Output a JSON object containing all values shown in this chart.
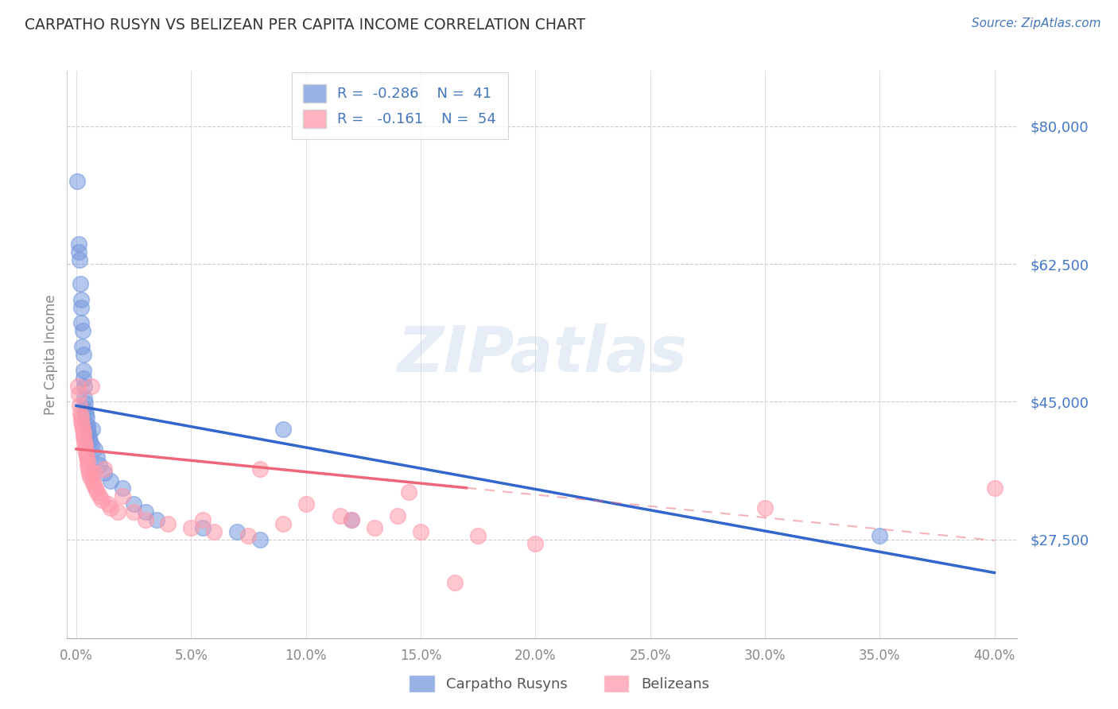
{
  "title": "CARPATHO RUSYN VS BELIZEAN PER CAPITA INCOME CORRELATION CHART",
  "source": "Source: ZipAtlas.com",
  "ylabel": "Per Capita Income",
  "xlabel_ticks": [
    "0.0%",
    "5.0%",
    "10.0%",
    "15.0%",
    "20.0%",
    "25.0%",
    "30.0%",
    "35.0%",
    "40.0%"
  ],
  "xlabel_vals": [
    0.0,
    5.0,
    10.0,
    15.0,
    20.0,
    25.0,
    30.0,
    35.0,
    40.0
  ],
  "ytick_labels": [
    "$27,500",
    "$45,000",
    "$62,500",
    "$80,000"
  ],
  "ytick_vals": [
    27500,
    45000,
    62500,
    80000
  ],
  "ylim": [
    15000,
    87000
  ],
  "xlim": [
    -0.4,
    41.0
  ],
  "watermark": "ZIPatlas",
  "title_color": "#333333",
  "source_color": "#4477bb",
  "axis_label_color": "#888888",
  "ytick_color": "#4477cc",
  "background_color": "#ffffff",
  "grid_color": "#cccccc",
  "blue_color": "#7799dd",
  "pink_color": "#ff99aa",
  "blue_line_color": "#3366cc",
  "pink_line_color": "#ee6677",
  "blue_intercept": 44500,
  "blue_slope": -530,
  "pink_intercept": 39000,
  "pink_slope": -290,
  "pink_solid_end": 17,
  "blue_line_end": 40,
  "pink_line_end": 40,
  "carpatho_rusyn_x": [
    0.05,
    0.1,
    0.12,
    0.15,
    0.18,
    0.2,
    0.22,
    0.22,
    0.25,
    0.28,
    0.3,
    0.3,
    0.32,
    0.35,
    0.35,
    0.38,
    0.4,
    0.42,
    0.45,
    0.48,
    0.5,
    0.52,
    0.55,
    0.6,
    0.65,
    0.7,
    0.8,
    0.9,
    1.0,
    1.2,
    1.5,
    2.0,
    2.5,
    3.0,
    3.5,
    5.5,
    7.0,
    8.0,
    9.0,
    12.0,
    35.0
  ],
  "carpatho_rusyn_y": [
    73000,
    65000,
    64000,
    63000,
    60000,
    58000,
    57000,
    55000,
    52000,
    54000,
    51000,
    49000,
    48000,
    47000,
    45500,
    44800,
    44000,
    43500,
    43000,
    42000,
    41500,
    41000,
    40500,
    40000,
    39500,
    41500,
    39000,
    38000,
    37000,
    36000,
    35000,
    34000,
    32000,
    31000,
    30000,
    29000,
    28500,
    27500,
    41500,
    30000,
    28000
  ],
  "belizean_x": [
    0.08,
    0.12,
    0.15,
    0.18,
    0.2,
    0.22,
    0.25,
    0.28,
    0.3,
    0.32,
    0.35,
    0.38,
    0.4,
    0.42,
    0.45,
    0.48,
    0.5,
    0.52,
    0.55,
    0.6,
    0.65,
    0.7,
    0.75,
    0.8,
    0.85,
    0.9,
    1.0,
    1.1,
    1.2,
    1.4,
    1.5,
    1.8,
    2.0,
    2.5,
    3.0,
    4.0,
    5.0,
    5.5,
    6.0,
    7.5,
    8.0,
    9.0,
    10.0,
    11.5,
    12.0,
    13.0,
    14.0,
    14.5,
    15.0,
    16.5,
    17.5,
    20.0,
    30.0,
    40.0
  ],
  "belizean_y": [
    47000,
    46000,
    44500,
    43500,
    43000,
    42500,
    42000,
    41500,
    41000,
    40500,
    40000,
    39500,
    39000,
    38500,
    38000,
    37500,
    37000,
    36500,
    36000,
    35500,
    47000,
    35000,
    34500,
    36000,
    34000,
    33500,
    33000,
    32500,
    36500,
    32000,
    31500,
    31000,
    33000,
    31000,
    30000,
    29500,
    29000,
    30000,
    28500,
    28000,
    36500,
    29500,
    32000,
    30500,
    30000,
    29000,
    30500,
    33500,
    28500,
    22000,
    28000,
    27000,
    31500,
    34000
  ]
}
